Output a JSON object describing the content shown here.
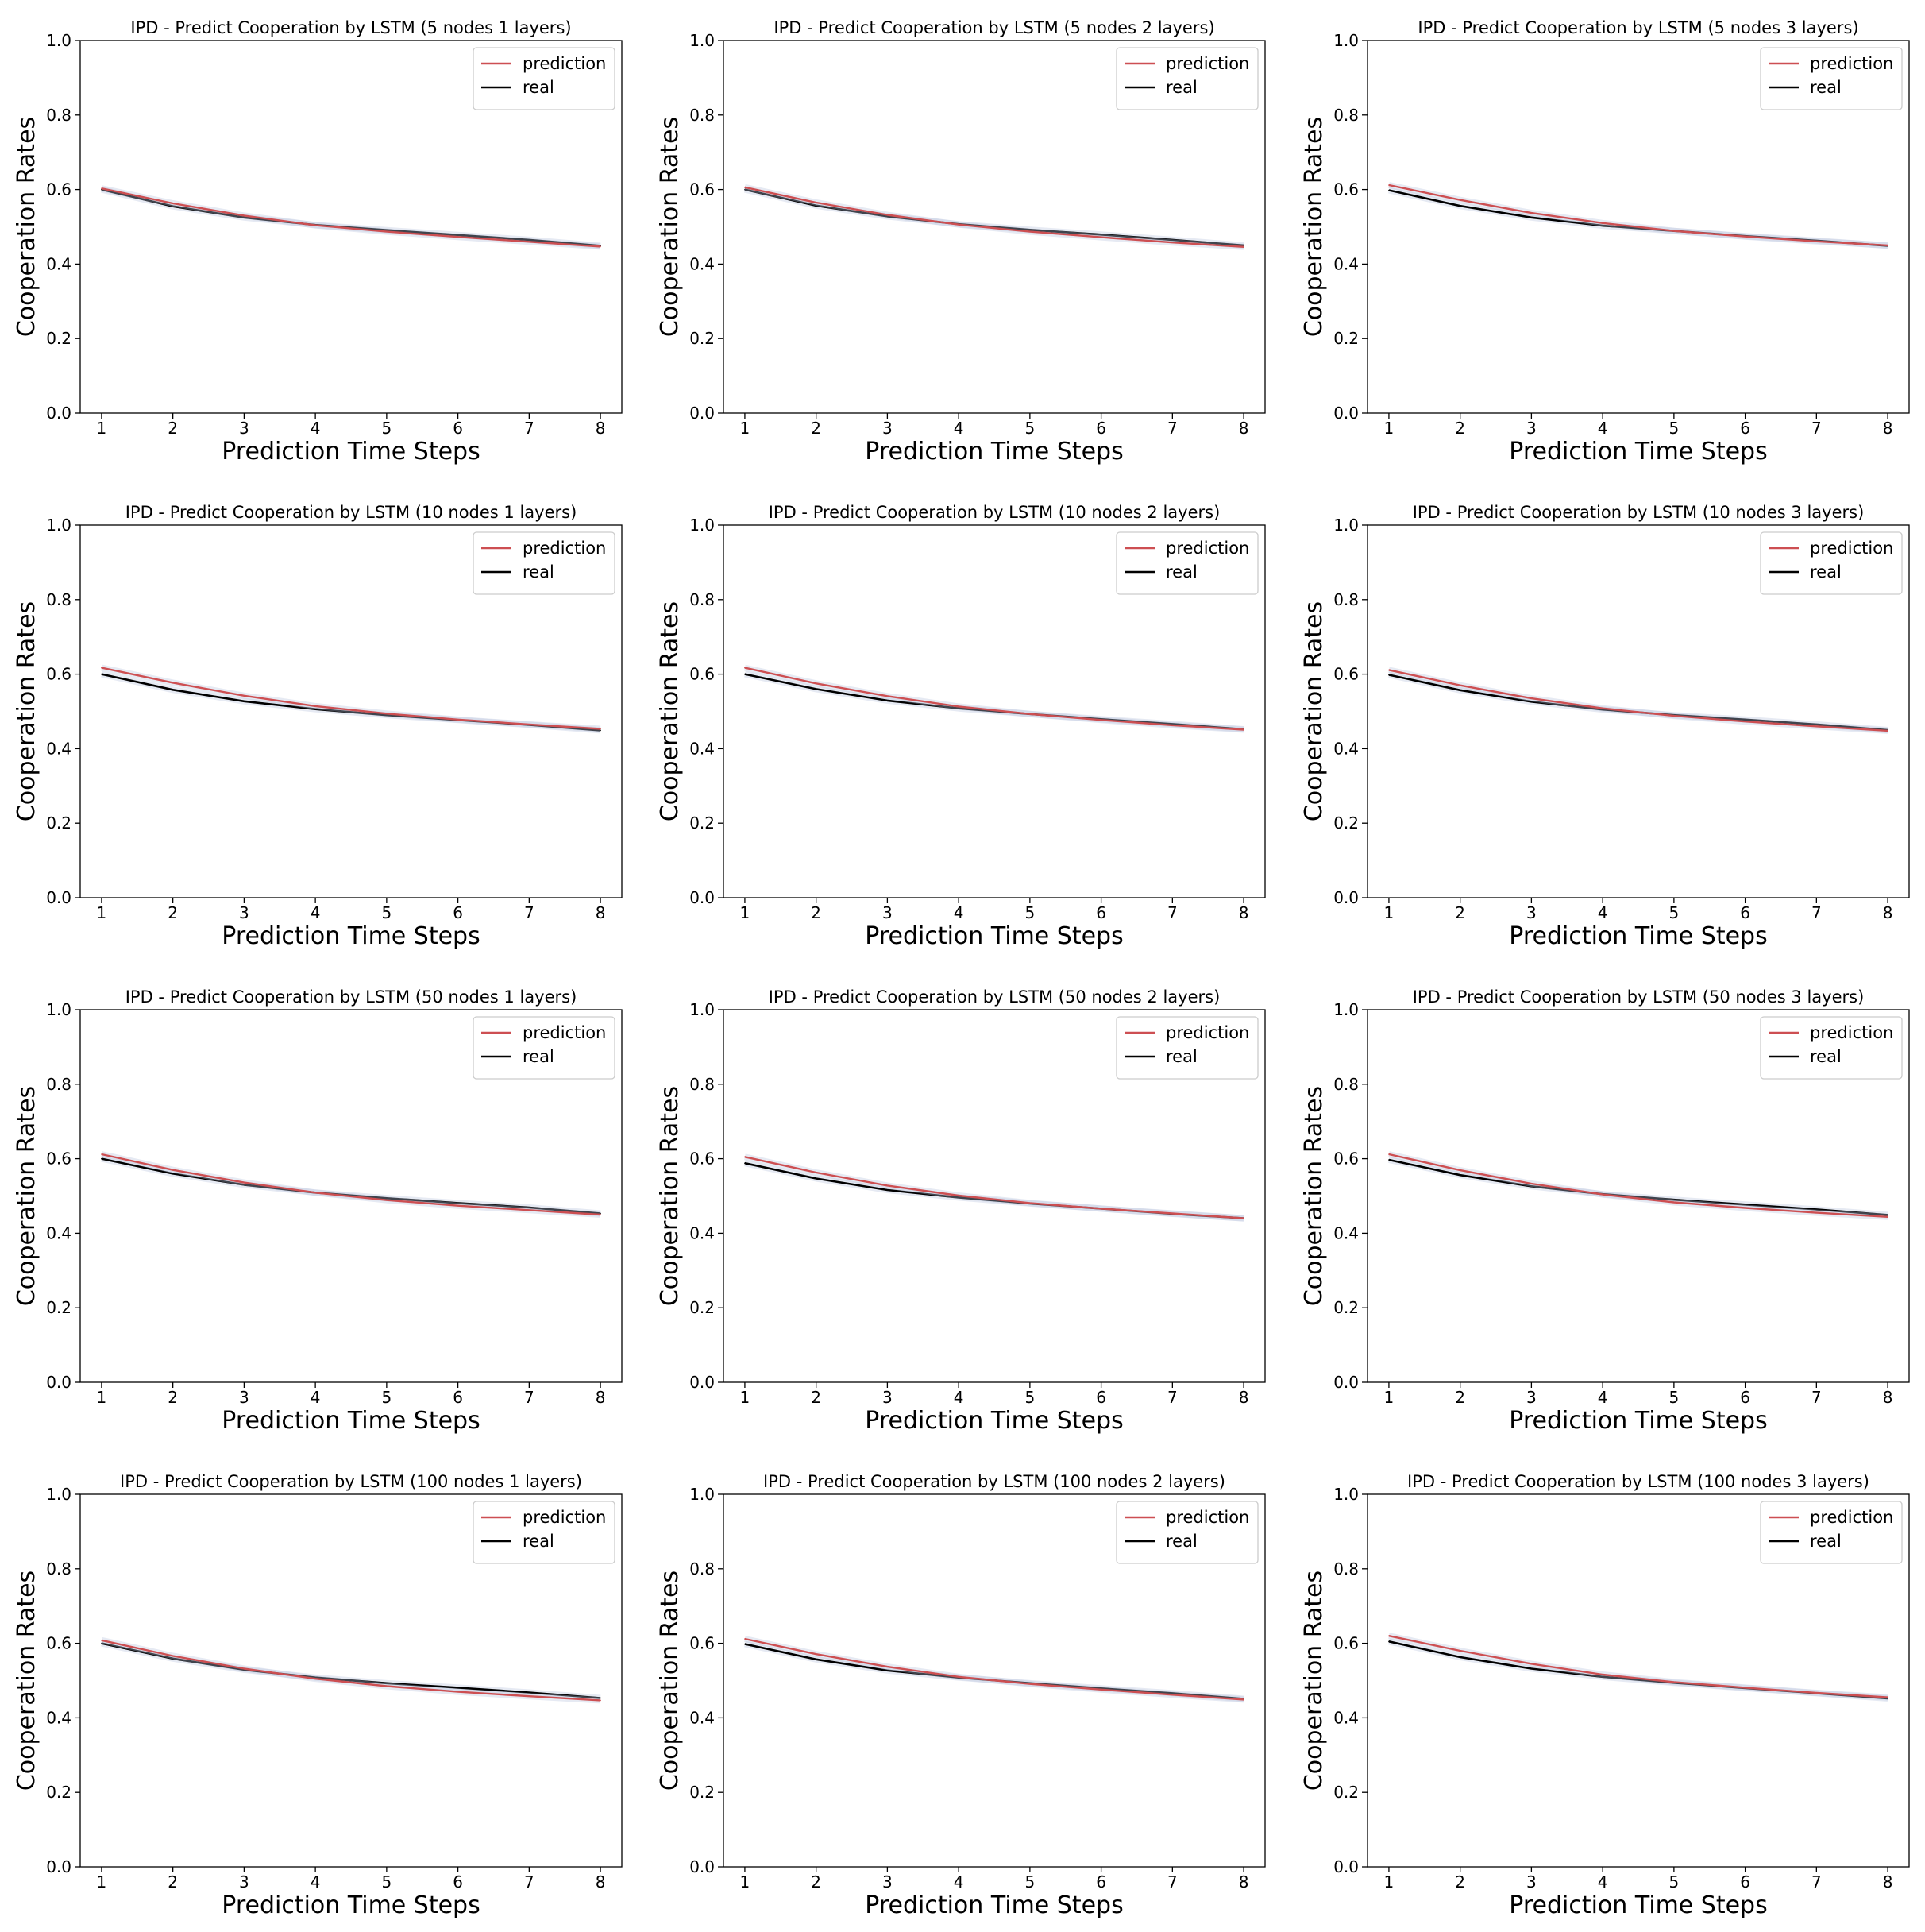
{
  "colors": {
    "prediction": "#cd4f52",
    "real": "#000000",
    "band": "#b8c4dc"
  },
  "chart_data": [
    {
      "type": "line",
      "title": "IPD - Predict Cooperation by LSTM (5 nodes 1 layers)",
      "xlabel": "Prediction Time Steps",
      "ylabel": "Cooperation Rates",
      "xlim": [
        0.7,
        8.3
      ],
      "ylim": [
        0,
        1
      ],
      "xticks": [
        "1",
        "2",
        "3",
        "4",
        "5",
        "6",
        "7",
        "8"
      ],
      "yticks": [
        "0.0",
        "0.2",
        "0.4",
        "0.6",
        "0.8",
        "1.0"
      ],
      "legend": "top-right",
      "x": [
        1,
        2,
        3,
        4,
        5,
        6,
        7,
        8
      ],
      "series": [
        {
          "name": "prediction",
          "values": [
            0.603,
            0.563,
            0.53,
            0.504,
            0.487,
            0.473,
            0.46,
            0.447
          ]
        },
        {
          "name": "real",
          "values": [
            0.6,
            0.555,
            0.525,
            0.505,
            0.491,
            0.478,
            0.465,
            0.449
          ]
        }
      ]
    },
    {
      "type": "line",
      "title": "IPD - Predict Cooperation by LSTM (5 nodes 2 layers)",
      "xlabel": "Prediction Time Steps",
      "ylabel": "Cooperation Rates",
      "xlim": [
        0.7,
        8.3
      ],
      "ylim": [
        0,
        1
      ],
      "xticks": [
        "1",
        "2",
        "3",
        "4",
        "5",
        "6",
        "7",
        "8"
      ],
      "yticks": [
        "0.0",
        "0.2",
        "0.4",
        "0.6",
        "0.8",
        "1.0"
      ],
      "legend": "top-right",
      "x": [
        1,
        2,
        3,
        4,
        5,
        6,
        7,
        8
      ],
      "series": [
        {
          "name": "prediction",
          "values": [
            0.606,
            0.565,
            0.532,
            0.506,
            0.487,
            0.472,
            0.458,
            0.446
          ]
        },
        {
          "name": "real",
          "values": [
            0.6,
            0.557,
            0.528,
            0.507,
            0.492,
            0.479,
            0.465,
            0.45
          ]
        }
      ]
    },
    {
      "type": "line",
      "title": "IPD - Predict Cooperation by LSTM (5 nodes 3 layers)",
      "xlabel": "Prediction Time Steps",
      "ylabel": "Cooperation Rates",
      "xlim": [
        0.7,
        8.3
      ],
      "ylim": [
        0,
        1
      ],
      "xticks": [
        "1",
        "2",
        "3",
        "4",
        "5",
        "6",
        "7",
        "8"
      ],
      "yticks": [
        "0.0",
        "0.2",
        "0.4",
        "0.6",
        "0.8",
        "1.0"
      ],
      "legend": "top-right",
      "x": [
        1,
        2,
        3,
        4,
        5,
        6,
        7,
        8
      ],
      "series": [
        {
          "name": "prediction",
          "values": [
            0.612,
            0.572,
            0.537,
            0.51,
            0.489,
            0.474,
            0.461,
            0.45
          ]
        },
        {
          "name": "real",
          "values": [
            0.598,
            0.556,
            0.525,
            0.503,
            0.489,
            0.475,
            0.463,
            0.449
          ]
        }
      ]
    },
    {
      "type": "line",
      "title": "IPD - Predict Cooperation by LSTM (10 nodes 1 layers)",
      "xlabel": "Prediction Time Steps",
      "ylabel": "Cooperation Rates",
      "xlim": [
        0.7,
        8.3
      ],
      "ylim": [
        0,
        1
      ],
      "xticks": [
        "1",
        "2",
        "3",
        "4",
        "5",
        "6",
        "7",
        "8"
      ],
      "yticks": [
        "0.0",
        "0.2",
        "0.4",
        "0.6",
        "0.8",
        "1.0"
      ],
      "legend": "top-right",
      "x": [
        1,
        2,
        3,
        4,
        5,
        6,
        7,
        8
      ],
      "series": [
        {
          "name": "prediction",
          "values": [
            0.617,
            0.577,
            0.542,
            0.514,
            0.494,
            0.478,
            0.465,
            0.453
          ]
        },
        {
          "name": "real",
          "values": [
            0.6,
            0.558,
            0.527,
            0.506,
            0.49,
            0.477,
            0.464,
            0.449
          ]
        }
      ]
    },
    {
      "type": "line",
      "title": "IPD - Predict Cooperation by LSTM (10 nodes 2 layers)",
      "xlabel": "Prediction Time Steps",
      "ylabel": "Cooperation Rates",
      "xlim": [
        0.7,
        8.3
      ],
      "ylim": [
        0,
        1
      ],
      "xticks": [
        "1",
        "2",
        "3",
        "4",
        "5",
        "6",
        "7",
        "8"
      ],
      "yticks": [
        "0.0",
        "0.2",
        "0.4",
        "0.6",
        "0.8",
        "1.0"
      ],
      "legend": "top-right",
      "x": [
        1,
        2,
        3,
        4,
        5,
        6,
        7,
        8
      ],
      "series": [
        {
          "name": "prediction",
          "values": [
            0.617,
            0.575,
            0.541,
            0.513,
            0.493,
            0.477,
            0.463,
            0.451
          ]
        },
        {
          "name": "real",
          "values": [
            0.6,
            0.56,
            0.529,
            0.508,
            0.493,
            0.479,
            0.466,
            0.452
          ]
        }
      ]
    },
    {
      "type": "line",
      "title": "IPD - Predict Cooperation by LSTM (10 nodes 3 layers)",
      "xlabel": "Prediction Time Steps",
      "ylabel": "Cooperation Rates",
      "xlim": [
        0.7,
        8.3
      ],
      "ylim": [
        0,
        1
      ],
      "xticks": [
        "1",
        "2",
        "3",
        "4",
        "5",
        "6",
        "7",
        "8"
      ],
      "yticks": [
        "0.0",
        "0.2",
        "0.4",
        "0.6",
        "0.8",
        "1.0"
      ],
      "legend": "top-right",
      "x": [
        1,
        2,
        3,
        4,
        5,
        6,
        7,
        8
      ],
      "series": [
        {
          "name": "prediction",
          "values": [
            0.611,
            0.57,
            0.535,
            0.508,
            0.488,
            0.473,
            0.46,
            0.448
          ]
        },
        {
          "name": "real",
          "values": [
            0.598,
            0.557,
            0.526,
            0.505,
            0.49,
            0.478,
            0.465,
            0.45
          ]
        }
      ]
    },
    {
      "type": "line",
      "title": "IPD - Predict Cooperation by LSTM (50 nodes 1 layers)",
      "xlabel": "Prediction Time Steps",
      "ylabel": "Cooperation Rates",
      "xlim": [
        0.7,
        8.3
      ],
      "ylim": [
        0,
        1
      ],
      "xticks": [
        "1",
        "2",
        "3",
        "4",
        "5",
        "6",
        "7",
        "8"
      ],
      "yticks": [
        "0.0",
        "0.2",
        "0.4",
        "0.6",
        "0.8",
        "1.0"
      ],
      "legend": "top-right",
      "x": [
        1,
        2,
        3,
        4,
        5,
        6,
        7,
        8
      ],
      "series": [
        {
          "name": "prediction",
          "values": [
            0.612,
            0.57,
            0.536,
            0.509,
            0.489,
            0.474,
            0.462,
            0.45
          ]
        },
        {
          "name": "real",
          "values": [
            0.6,
            0.56,
            0.53,
            0.509,
            0.494,
            0.481,
            0.469,
            0.453
          ]
        }
      ]
    },
    {
      "type": "line",
      "title": "IPD - Predict Cooperation by LSTM (50 nodes 2 layers)",
      "xlabel": "Prediction Time Steps",
      "ylabel": "Cooperation Rates",
      "xlim": [
        0.7,
        8.3
      ],
      "ylim": [
        0,
        1
      ],
      "xticks": [
        "1",
        "2",
        "3",
        "4",
        "5",
        "6",
        "7",
        "8"
      ],
      "yticks": [
        "0.0",
        "0.2",
        "0.4",
        "0.6",
        "0.8",
        "1.0"
      ],
      "legend": "top-right",
      "x": [
        1,
        2,
        3,
        4,
        5,
        6,
        7,
        8
      ],
      "series": [
        {
          "name": "prediction",
          "values": [
            0.605,
            0.563,
            0.528,
            0.501,
            0.481,
            0.466,
            0.453,
            0.44
          ]
        },
        {
          "name": "real",
          "values": [
            0.588,
            0.547,
            0.516,
            0.496,
            0.48,
            0.466,
            0.452,
            0.44
          ]
        }
      ]
    },
    {
      "type": "line",
      "title": "IPD - Predict Cooperation by LSTM (50 nodes 3 layers)",
      "xlabel": "Prediction Time Steps",
      "ylabel": "Cooperation Rates",
      "xlim": [
        0.7,
        8.3
      ],
      "ylim": [
        0,
        1
      ],
      "xticks": [
        "1",
        "2",
        "3",
        "4",
        "5",
        "6",
        "7",
        "8"
      ],
      "yticks": [
        "0.0",
        "0.2",
        "0.4",
        "0.6",
        "0.8",
        "1.0"
      ],
      "legend": "top-right",
      "x": [
        1,
        2,
        3,
        4,
        5,
        6,
        7,
        8
      ],
      "series": [
        {
          "name": "prediction",
          "values": [
            0.612,
            0.569,
            0.533,
            0.504,
            0.483,
            0.468,
            0.455,
            0.444
          ]
        },
        {
          "name": "real",
          "values": [
            0.597,
            0.556,
            0.526,
            0.505,
            0.49,
            0.477,
            0.464,
            0.449
          ]
        }
      ]
    },
    {
      "type": "line",
      "title": "IPD - Predict Cooperation by LSTM (100 nodes 1 layers)",
      "xlabel": "Prediction Time Steps",
      "ylabel": "Cooperation Rates",
      "xlim": [
        0.7,
        8.3
      ],
      "ylim": [
        0,
        1
      ],
      "xticks": [
        "1",
        "2",
        "3",
        "4",
        "5",
        "6",
        "7",
        "8"
      ],
      "yticks": [
        "0.0",
        "0.2",
        "0.4",
        "0.6",
        "0.8",
        "1.0"
      ],
      "legend": "top-right",
      "x": [
        1,
        2,
        3,
        4,
        5,
        6,
        7,
        8
      ],
      "series": [
        {
          "name": "prediction",
          "values": [
            0.608,
            0.566,
            0.532,
            0.505,
            0.485,
            0.47,
            0.458,
            0.447
          ]
        },
        {
          "name": "real",
          "values": [
            0.6,
            0.559,
            0.529,
            0.508,
            0.493,
            0.481,
            0.468,
            0.453
          ]
        }
      ]
    },
    {
      "type": "line",
      "title": "IPD - Predict Cooperation by LSTM (100 nodes 2 layers)",
      "xlabel": "Prediction Time Steps",
      "ylabel": "Cooperation Rates",
      "xlim": [
        0.7,
        8.3
      ],
      "ylim": [
        0,
        1
      ],
      "xticks": [
        "1",
        "2",
        "3",
        "4",
        "5",
        "6",
        "7",
        "8"
      ],
      "yticks": [
        "0.0",
        "0.2",
        "0.4",
        "0.6",
        "0.8",
        "1.0"
      ],
      "legend": "top-right",
      "x": [
        1,
        2,
        3,
        4,
        5,
        6,
        7,
        8
      ],
      "series": [
        {
          "name": "prediction",
          "values": [
            0.612,
            0.571,
            0.537,
            0.51,
            0.491,
            0.476,
            0.462,
            0.449
          ]
        },
        {
          "name": "real",
          "values": [
            0.598,
            0.557,
            0.527,
            0.508,
            0.493,
            0.479,
            0.466,
            0.451
          ]
        }
      ]
    },
    {
      "type": "line",
      "title": "IPD - Predict Cooperation by LSTM (100 nodes 3 layers)",
      "xlabel": "Prediction Time Steps",
      "ylabel": "Cooperation Rates",
      "xlim": [
        0.7,
        8.3
      ],
      "ylim": [
        0,
        1
      ],
      "xticks": [
        "1",
        "2",
        "3",
        "4",
        "5",
        "6",
        "7",
        "8"
      ],
      "yticks": [
        "0.0",
        "0.2",
        "0.4",
        "0.6",
        "0.8",
        "1.0"
      ],
      "legend": "top-right",
      "x": [
        1,
        2,
        3,
        4,
        5,
        6,
        7,
        8
      ],
      "series": [
        {
          "name": "prediction",
          "values": [
            0.62,
            0.58,
            0.545,
            0.516,
            0.496,
            0.481,
            0.467,
            0.455
          ]
        },
        {
          "name": "real",
          "values": [
            0.605,
            0.563,
            0.532,
            0.51,
            0.494,
            0.48,
            0.466,
            0.452
          ]
        }
      ]
    }
  ]
}
